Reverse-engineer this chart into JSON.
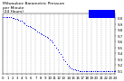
{
  "title": "Milwaukee Barometric Pressure\nper Minute\n(24 Hours)",
  "title_fontsize": 3.2,
  "bg_color": "#ffffff",
  "dot_color": "#0000ff",
  "legend_color": "#0000ff",
  "ylim": [
    29.05,
    30.08
  ],
  "yticks": [
    29.1,
    29.2,
    29.3,
    29.4,
    29.5,
    29.6,
    29.7,
    29.8,
    29.9,
    30.0
  ],
  "ytick_labels": [
    "9.1",
    "9.2",
    "9.3",
    "9.4",
    "9.5",
    "9.6",
    "9.7",
    "9.8",
    "9.9",
    "0.0"
  ],
  "x_data": [
    0,
    20,
    40,
    60,
    80,
    100,
    120,
    140,
    160,
    180,
    200,
    220,
    240,
    260,
    280,
    300,
    320,
    340,
    360,
    380,
    400,
    420,
    440,
    460,
    480,
    500,
    520,
    540,
    560,
    580,
    600,
    620,
    640,
    660,
    680,
    700,
    720,
    740,
    760,
    780,
    800,
    820,
    840,
    860,
    880,
    900,
    920,
    940,
    960,
    980,
    1000,
    1020,
    1040,
    1060,
    1080,
    1100,
    1120,
    1140,
    1160,
    1180,
    1200,
    1220,
    1240,
    1260,
    1280,
    1300,
    1320,
    1340,
    1360,
    1380,
    1400,
    1420,
    1439
  ],
  "y_data": [
    30.02,
    30.02,
    30.02,
    30.01,
    30.01,
    30.01,
    30.0,
    30.0,
    29.99,
    29.98,
    29.97,
    29.96,
    29.95,
    29.93,
    29.91,
    29.88,
    29.87,
    29.86,
    29.85,
    29.84,
    29.82,
    29.8,
    29.77,
    29.75,
    29.74,
    29.73,
    29.71,
    29.69,
    29.68,
    29.66,
    29.64,
    29.62,
    29.58,
    29.54,
    29.5,
    29.46,
    29.42,
    29.38,
    29.34,
    29.3,
    29.26,
    29.22,
    29.18,
    29.16,
    29.14,
    29.13,
    29.12,
    29.11,
    29.11,
    29.1,
    29.1,
    29.1,
    29.1,
    29.1,
    29.1,
    29.1,
    29.1,
    29.1,
    29.1,
    29.1,
    29.1,
    29.1,
    29.1,
    29.1,
    29.1,
    29.1,
    29.1,
    29.1,
    29.1,
    29.1,
    29.1,
    29.1,
    29.1
  ],
  "grid_color": "#aaaaaa",
  "grid_linestyle": "--",
  "tick_fontsize": 2.8,
  "dot_size": 0.5,
  "xlim": [
    0,
    1439
  ],
  "xtick_positions": [
    0,
    60,
    120,
    180,
    240,
    300,
    360,
    420,
    480,
    540,
    600,
    660,
    720,
    780,
    840,
    900,
    960,
    1020,
    1080,
    1140,
    1200,
    1260,
    1320,
    1380,
    1439
  ],
  "xtick_labels": [
    "0",
    "1",
    "2",
    "3",
    "4",
    "5",
    "6",
    "7",
    "8",
    "9",
    "10",
    "11",
    "12",
    "13",
    "14",
    "15",
    "16",
    "17",
    "18",
    "19",
    "20",
    "21",
    "22",
    "23",
    "24"
  ]
}
